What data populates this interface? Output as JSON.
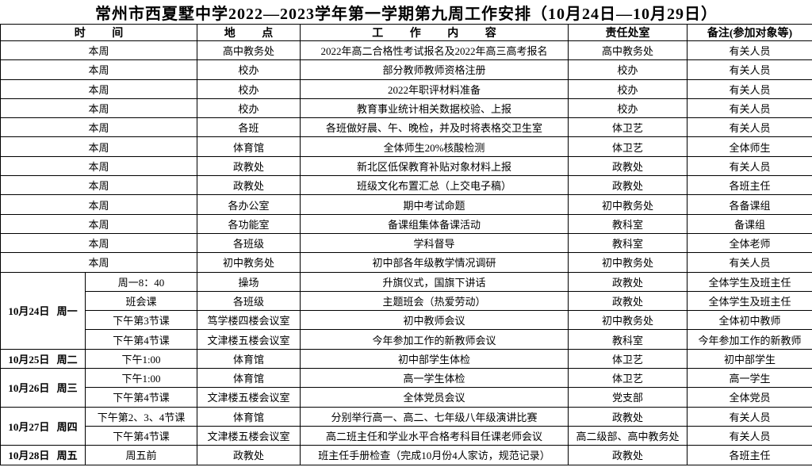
{
  "header": {
    "title": "常州市西夏墅中学2022—2023学年第一学期第九周工作安排（10月24日—10月29日）"
  },
  "table": {
    "columns": [
      "时 间",
      "地 点",
      "工 作 内 容",
      "责任处室",
      "备注(参加对象等)"
    ],
    "weekly_rows": [
      [
        "本周",
        "高中教务处",
        "2022年高二合格性考试报名及2022年高三高考报名",
        "高中教务处",
        "有关人员"
      ],
      [
        "本周",
        "校办",
        "部分教师教师资格注册",
        "校办",
        "有关人员"
      ],
      [
        "本周",
        "校办",
        "2022年职评材料准备",
        "校办",
        "有关人员"
      ],
      [
        "本周",
        "校办",
        "教育事业统计相关数据校验、上报",
        "校办",
        "有关人员"
      ],
      [
        "本周",
        "各班",
        "各班做好晨、午、晚检，并及时将表格交卫生室",
        "体卫艺",
        "有关人员"
      ],
      [
        "本周",
        "体育馆",
        "全体师生20%核酸检测",
        "体卫艺",
        "全体师生"
      ],
      [
        "本周",
        "政教处",
        "新北区低保教育补贴对象材料上报",
        "政教处",
        "有关人员"
      ],
      [
        "本周",
        "政教处",
        "班级文化布置汇总（上交电子稿）",
        "政教处",
        "各班主任"
      ],
      [
        "本周",
        "各办公室",
        "期中考试命题",
        "初中教务处",
        "各备课组"
      ],
      [
        "本周",
        "各功能室",
        "备课组集体备课活动",
        "教科室",
        "备课组"
      ],
      [
        "本周",
        "各班级",
        "学科督导",
        "教科室",
        "全体老师"
      ],
      [
        "本周",
        "初中教务处",
        "初中部各年级教学情况调研",
        "初中教务处",
        "有关人员"
      ]
    ],
    "days": [
      {
        "date": "10月24日 周一",
        "rows": [
          [
            "周一8：40",
            "操场",
            "升旗仪式，国旗下讲话",
            "政教处",
            "全体学生及班主任"
          ],
          [
            "班会课",
            "各班级",
            "主题班会（热爱劳动）",
            "政教处",
            "全体学生及班主任"
          ],
          [
            "下午第3节课",
            "笃学楼四楼会议室",
            "初中教师会议",
            "初中教务处",
            "全体初中教师"
          ],
          [
            "下午第4节课",
            "文津楼五楼会议室",
            "今年参加工作的新教师会议",
            "教科室",
            "今年参加工作的新教师"
          ]
        ]
      },
      {
        "date": "10月25日 周二",
        "rows": [
          [
            "下午1:00",
            "体育馆",
            "初中部学生体检",
            "体卫艺",
            "初中部学生"
          ]
        ]
      },
      {
        "date": "10月26日 周三",
        "rows": [
          [
            "下午1:00",
            "体育馆",
            "高一学生体检",
            "体卫艺",
            "高一学生"
          ],
          [
            "下午第4节课",
            "文津楼五楼会议室",
            "全体党员会议",
            "党支部",
            "全体党员"
          ]
        ]
      },
      {
        "date": "10月27日 周四",
        "rows": [
          [
            "下午第2、3、4节课",
            "体育馆",
            "分别举行高一、高二、七年级八年级演讲比赛",
            "政教处",
            "有关人员"
          ],
          [
            "下午第4节课",
            "文津楼五楼会议室",
            "高二班主任和学业水平合格考科目任课老师会议",
            "高二级部、高中教务处",
            "有关人员"
          ]
        ]
      },
      {
        "date": "10月28日 周五",
        "rows": [
          [
            "周五前",
            "政教处",
            "班主任手册检查（完成10月份4人家访，规范记录）",
            "政教处",
            "各班主任"
          ]
        ]
      }
    ]
  }
}
